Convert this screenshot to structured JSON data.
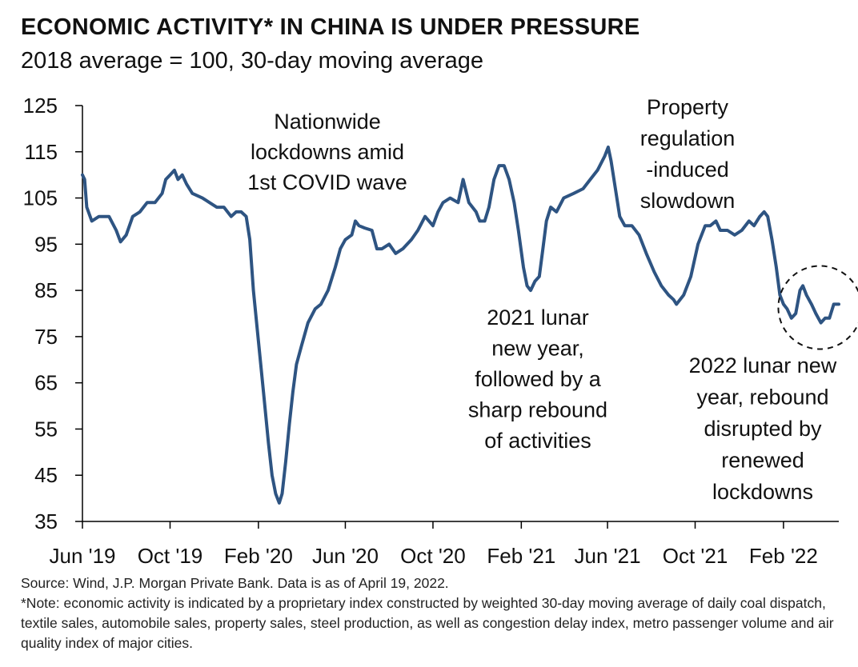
{
  "header": {
    "title": "ECONOMIC ACTIVITY* IN CHINA IS UNDER PRESSURE",
    "subtitle": "2018 average = 100, 30-day moving average"
  },
  "footer": {
    "source": "Source: Wind, J.P. Morgan Private Bank. Data is as of April 19, 2022.",
    "note": "*Note: economic activity is indicated by a proprietary index constructed by weighted 30-day moving average of daily coal dispatch, textile sales, automobile sales, property sales, steel production, as well as congestion delay index, metro passenger volume and air quality index of major cities."
  },
  "colors": {
    "line": "#2e5482",
    "axis": "#000000",
    "circle": "#111111"
  },
  "chart_data": {
    "type": "line",
    "title": "ECONOMIC ACTIVITY* IN CHINA IS UNDER PRESSURE",
    "subtitle": "2018 average = 100, 30-day moving average",
    "ylim": [
      35,
      125
    ],
    "yticks": [
      35,
      45,
      55,
      65,
      75,
      85,
      95,
      105,
      115,
      125
    ],
    "x_range": [
      "2019-06-01",
      "2022-04-19"
    ],
    "xticks": [
      {
        "date": "2019-06-01",
        "label": "Jun '19"
      },
      {
        "date": "2019-10-01",
        "label": "Oct '19"
      },
      {
        "date": "2020-02-01",
        "label": "Feb '20"
      },
      {
        "date": "2020-06-01",
        "label": "Jun '20"
      },
      {
        "date": "2020-10-01",
        "label": "Oct '20"
      },
      {
        "date": "2021-02-01",
        "label": "Feb '21"
      },
      {
        "date": "2021-06-01",
        "label": "Jun '21"
      },
      {
        "date": "2021-10-01",
        "label": "Oct '21"
      },
      {
        "date": "2022-02-01",
        "label": "Feb '22"
      }
    ],
    "grid": false,
    "series": [
      {
        "points": [
          [
            "2019-06-01",
            110
          ],
          [
            "2019-06-04",
            109
          ],
          [
            "2019-06-07",
            103
          ],
          [
            "2019-06-14",
            100
          ],
          [
            "2019-06-24",
            101
          ],
          [
            "2019-07-08",
            101
          ],
          [
            "2019-07-18",
            98
          ],
          [
            "2019-07-24",
            95.5
          ],
          [
            "2019-08-01",
            97
          ],
          [
            "2019-08-10",
            101
          ],
          [
            "2019-08-20",
            102
          ],
          [
            "2019-08-30",
            104
          ],
          [
            "2019-09-10",
            104
          ],
          [
            "2019-09-20",
            106
          ],
          [
            "2019-09-25",
            109
          ],
          [
            "2019-10-01",
            110
          ],
          [
            "2019-10-07",
            111
          ],
          [
            "2019-10-12",
            109
          ],
          [
            "2019-10-18",
            110
          ],
          [
            "2019-10-24",
            108
          ],
          [
            "2019-11-01",
            106
          ],
          [
            "2019-11-15",
            105
          ],
          [
            "2019-11-25",
            104
          ],
          [
            "2019-12-05",
            103
          ],
          [
            "2019-12-15",
            103
          ],
          [
            "2019-12-25",
            101
          ],
          [
            "2020-01-01",
            102
          ],
          [
            "2020-01-08",
            102
          ],
          [
            "2020-01-15",
            101
          ],
          [
            "2020-01-20",
            96
          ],
          [
            "2020-01-25",
            85
          ],
          [
            "2020-02-01",
            74
          ],
          [
            "2020-02-08",
            63
          ],
          [
            "2020-02-15",
            52
          ],
          [
            "2020-02-20",
            45
          ],
          [
            "2020-02-25",
            41
          ],
          [
            "2020-03-01",
            39
          ],
          [
            "2020-03-05",
            41
          ],
          [
            "2020-03-10",
            48
          ],
          [
            "2020-03-15",
            56
          ],
          [
            "2020-03-20",
            63
          ],
          [
            "2020-03-25",
            69
          ],
          [
            "2020-04-01",
            73
          ],
          [
            "2020-04-10",
            78
          ],
          [
            "2020-04-20",
            81
          ],
          [
            "2020-04-28",
            82
          ],
          [
            "2020-05-08",
            85
          ],
          [
            "2020-05-18",
            90
          ],
          [
            "2020-05-25",
            94
          ],
          [
            "2020-06-01",
            96
          ],
          [
            "2020-06-10",
            97
          ],
          [
            "2020-06-15",
            100
          ],
          [
            "2020-06-20",
            99
          ],
          [
            "2020-06-28",
            98.5
          ],
          [
            "2020-07-08",
            98
          ],
          [
            "2020-07-15",
            94
          ],
          [
            "2020-07-22",
            94
          ],
          [
            "2020-08-01",
            95
          ],
          [
            "2020-08-10",
            93
          ],
          [
            "2020-08-20",
            94
          ],
          [
            "2020-09-01",
            96
          ],
          [
            "2020-09-10",
            98
          ],
          [
            "2020-09-20",
            101
          ],
          [
            "2020-10-01",
            99
          ],
          [
            "2020-10-08",
            102
          ],
          [
            "2020-10-15",
            104
          ],
          [
            "2020-10-25",
            105
          ],
          [
            "2020-11-05",
            104
          ],
          [
            "2020-11-12",
            109
          ],
          [
            "2020-11-20",
            104
          ],
          [
            "2020-11-30",
            102
          ],
          [
            "2020-12-05",
            100
          ],
          [
            "2020-12-12",
            100
          ],
          [
            "2020-12-18",
            103
          ],
          [
            "2020-12-25",
            109
          ],
          [
            "2021-01-01",
            112
          ],
          [
            "2021-01-08",
            112
          ],
          [
            "2021-01-15",
            109
          ],
          [
            "2021-01-22",
            104
          ],
          [
            "2021-01-28",
            98
          ],
          [
            "2021-02-04",
            90
          ],
          [
            "2021-02-09",
            86
          ],
          [
            "2021-02-14",
            85
          ],
          [
            "2021-02-20",
            87
          ],
          [
            "2021-02-26",
            88
          ],
          [
            "2021-03-03",
            94
          ],
          [
            "2021-03-08",
            100
          ],
          [
            "2021-03-14",
            103
          ],
          [
            "2021-03-22",
            102
          ],
          [
            "2021-04-01",
            105
          ],
          [
            "2021-04-15",
            106
          ],
          [
            "2021-04-28",
            107
          ],
          [
            "2021-05-08",
            109
          ],
          [
            "2021-05-18",
            111
          ],
          [
            "2021-05-28",
            114
          ],
          [
            "2021-06-02",
            116
          ],
          [
            "2021-06-06",
            113
          ],
          [
            "2021-06-12",
            107
          ],
          [
            "2021-06-18",
            101
          ],
          [
            "2021-06-25",
            99
          ],
          [
            "2021-07-05",
            99
          ],
          [
            "2021-07-15",
            97
          ],
          [
            "2021-07-25",
            93
          ],
          [
            "2021-08-05",
            89
          ],
          [
            "2021-08-15",
            86
          ],
          [
            "2021-08-25",
            84
          ],
          [
            "2021-09-01",
            83
          ],
          [
            "2021-09-05",
            82
          ],
          [
            "2021-09-15",
            84
          ],
          [
            "2021-09-25",
            88
          ],
          [
            "2021-10-05",
            95
          ],
          [
            "2021-10-15",
            99
          ],
          [
            "2021-10-22",
            99
          ],
          [
            "2021-10-30",
            100
          ],
          [
            "2021-11-05",
            98
          ],
          [
            "2021-11-15",
            98
          ],
          [
            "2021-11-25",
            97
          ],
          [
            "2021-12-05",
            98
          ],
          [
            "2021-12-15",
            100
          ],
          [
            "2021-12-22",
            99
          ],
          [
            "2021-12-30",
            101
          ],
          [
            "2022-01-05",
            102
          ],
          [
            "2022-01-10",
            101
          ],
          [
            "2022-01-16",
            96
          ],
          [
            "2022-01-22",
            90
          ],
          [
            "2022-01-27",
            84
          ],
          [
            "2022-02-01",
            82
          ],
          [
            "2022-02-06",
            81
          ],
          [
            "2022-02-12",
            79
          ],
          [
            "2022-02-18",
            80
          ],
          [
            "2022-02-24",
            85
          ],
          [
            "2022-02-28",
            86
          ],
          [
            "2022-03-05",
            84
          ],
          [
            "2022-03-12",
            82
          ],
          [
            "2022-03-18",
            80
          ],
          [
            "2022-03-25",
            78
          ],
          [
            "2022-03-31",
            79
          ],
          [
            "2022-04-06",
            79
          ],
          [
            "2022-04-12",
            82
          ],
          [
            "2022-04-19",
            82
          ]
        ]
      }
    ],
    "annotations": [
      {
        "id": "covid",
        "lines": [
          "Nationwide",
          "lockdowns amid",
          "1st COVID wave"
        ]
      },
      {
        "id": "lny2021",
        "lines": [
          "2021 lunar",
          "new year,",
          "followed by a",
          "sharp rebound",
          "of activities"
        ]
      },
      {
        "id": "property",
        "lines": [
          "Property",
          "regulation",
          "-induced",
          "slowdown"
        ]
      },
      {
        "id": "lny2022",
        "lines": [
          "2022 lunar new",
          "year, rebound",
          "disrupted by",
          "renewed",
          "lockdowns"
        ]
      }
    ],
    "highlight": {
      "type": "dashed-circle",
      "around": [
        "2022-02-01",
        "2022-04-19"
      ]
    }
  }
}
